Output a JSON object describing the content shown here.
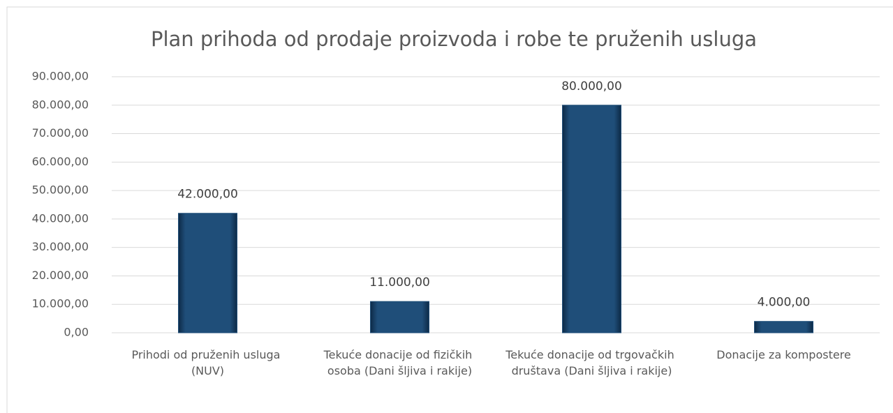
{
  "chart_data": {
    "type": "bar",
    "title": "Plan prihoda od prodaje proizvoda i robe te pruženih usluga",
    "categories": [
      "Prihodi od pruženih usluga (NUV)",
      "Tekuće donacije od fizičkih osoba (Dani šljiva i rakije)",
      "Tekuće donacije od trgovačkih društava (Dani šljiva i rakije)",
      "Donacije za kompostere"
    ],
    "values": [
      42000,
      11000,
      80000,
      4000
    ],
    "value_labels": [
      "42.000,00",
      "11.000,00",
      "80.000,00",
      "4.000,00"
    ],
    "color": "#1f4e79",
    "ylim": [
      0,
      90000
    ],
    "yticks": [
      {
        "value": 0,
        "label": "0,00"
      },
      {
        "value": 10000,
        "label": "10.000,00"
      },
      {
        "value": 20000,
        "label": "20.000,00"
      },
      {
        "value": 30000,
        "label": "30.000,00"
      },
      {
        "value": 40000,
        "label": "40.000,00"
      },
      {
        "value": 50000,
        "label": "50.000,00"
      },
      {
        "value": 60000,
        "label": "60.000,00"
      },
      {
        "value": 70000,
        "label": "70.000,00"
      },
      {
        "value": 80000,
        "label": "80.000,00"
      },
      {
        "value": 90000,
        "label": "90.000,00"
      }
    ],
    "grid": true
  }
}
